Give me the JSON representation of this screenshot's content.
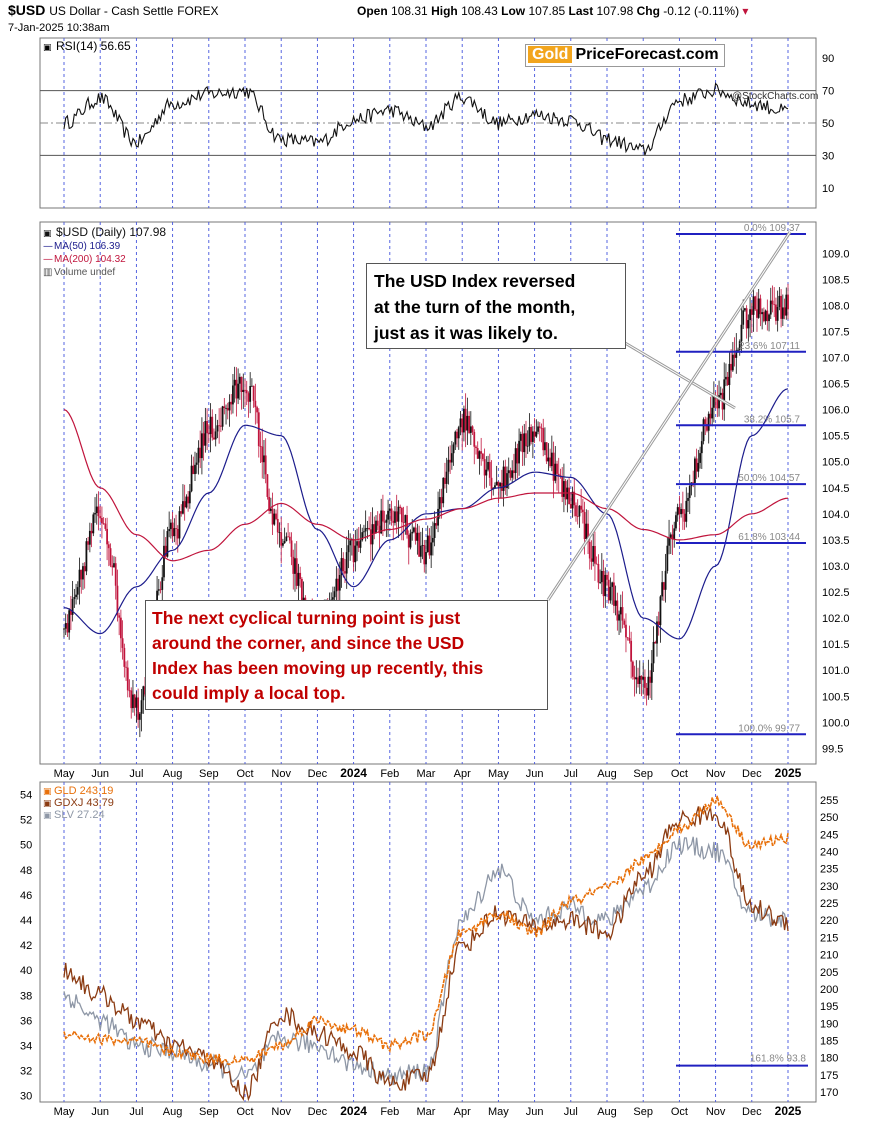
{
  "header": {
    "symbol": "$USD",
    "name": "US Dollar - Cash Settle",
    "exchange": "FOREX",
    "date": "7-Jan-2025 10:38am",
    "open_label": "Open",
    "open": "108.31",
    "high_label": "High",
    "high": "108.43",
    "low_label": "Low",
    "low": "107.85",
    "last_label": "Last",
    "last": "107.98",
    "chg_label": "Chg",
    "chg": "-0.12 (-0.11%)"
  },
  "watermark": {
    "brand": "Gold",
    "brand_rest": "PriceForecast.com",
    "credit": "@StockCharts.com"
  },
  "callouts": {
    "usd_reversal": [
      "The USD Index reversed",
      "at the turn of the month,",
      "just as it was likely to."
    ],
    "turning_point": [
      "The next cyclical turning point is just",
      "around the corner, and since the USD",
      "Index has been moving up recently, this",
      "could imply a local top."
    ]
  },
  "chart_data": [
    {
      "type": "line",
      "title": "RSI(14) 56.65",
      "y_ticks": [
        "90",
        "70",
        "50",
        "30",
        "10"
      ],
      "ylim": [
        0,
        100
      ],
      "reference_lines": [
        70,
        50,
        30
      ],
      "x": [
        "2023-05",
        "2023-06",
        "2023-07",
        "2023-08",
        "2023-09",
        "2023-10",
        "2023-11",
        "2023-12",
        "2024-01",
        "2024-02",
        "2024-03",
        "2024-04",
        "2024-05",
        "2024-06",
        "2024-07",
        "2024-08",
        "2024-09",
        "2024-10",
        "2024-11",
        "2024-12",
        "2025-01"
      ],
      "series": [
        {
          "name": "RSI(14)",
          "values": [
            50,
            65,
            38,
            62,
            68,
            70,
            40,
            38,
            52,
            58,
            48,
            66,
            50,
            55,
            52,
            40,
            33,
            64,
            70,
            62,
            57
          ]
        }
      ],
      "color": "#111111"
    },
    {
      "type": "line",
      "title": "$USD (Daily) 107.98",
      "legend": [
        "$USD (Daily) 107.98",
        "MA(50) 106.39",
        "MA(200) 104.32",
        "Volume undef"
      ],
      "y_ticks": [
        "109.0",
        "108.5",
        "108.0",
        "107.5",
        "107.0",
        "106.5",
        "106.0",
        "105.5",
        "105.0",
        "104.5",
        "104.0",
        "103.5",
        "103.0",
        "102.5",
        "102.0",
        "101.5",
        "101.0",
        "100.5",
        "100.0",
        "99.5"
      ],
      "ylim": [
        99.2,
        109.6
      ],
      "x_labels": [
        "May",
        "Jun",
        "Jul",
        "Aug",
        "Sep",
        "Oct",
        "Nov",
        "Dec",
        "2024",
        "Feb",
        "Mar",
        "Apr",
        "May",
        "Jun",
        "Jul",
        "Aug",
        "Sep",
        "Oct",
        "Nov",
        "Dec",
        "2025"
      ],
      "x": [
        "2023-05",
        "2023-06",
        "2023-07",
        "2023-08",
        "2023-09",
        "2023-10",
        "2023-11",
        "2023-12",
        "2024-01",
        "2024-02",
        "2024-03",
        "2024-04",
        "2024-05",
        "2024-06",
        "2024-07",
        "2024-08",
        "2024-09",
        "2024-10",
        "2024-11",
        "2024-12",
        "2025-01"
      ],
      "series": [
        {
          "name": "$USD (Daily)",
          "color": "#111111",
          "values": [
            101.8,
            104.0,
            100.3,
            103.6,
            105.6,
            106.5,
            103.5,
            101.7,
            103.3,
            104.0,
            103.3,
            105.8,
            104.6,
            105.6,
            104.3,
            102.6,
            100.7,
            104.0,
            106.1,
            107.9,
            108.0
          ]
        },
        {
          "name": "MA(50)",
          "color": "#1c1c8c",
          "values": [
            102.2,
            101.7,
            102.6,
            103.3,
            104.4,
            105.7,
            105.5,
            103.7,
            102.6,
            103.5,
            104.0,
            104.1,
            104.5,
            104.8,
            104.7,
            104.0,
            102.0,
            101.6,
            103.0,
            105.5,
            106.4
          ]
        },
        {
          "name": "MA(200)",
          "color": "#c0143c",
          "values": [
            106.0,
            104.5,
            103.6,
            103.1,
            103.3,
            103.8,
            104.2,
            103.8,
            103.5,
            103.7,
            103.9,
            104.1,
            104.3,
            104.4,
            104.4,
            104.1,
            103.7,
            103.5,
            103.6,
            104.0,
            104.3
          ]
        }
      ],
      "fibonacci": [
        {
          "label": "0.0% 109.37",
          "value": 109.37
        },
        {
          "label": "23.6% 107.11",
          "value": 107.11
        },
        {
          "label": "38.2% 105.7",
          "value": 105.7
        },
        {
          "label": "50.0% 104.57",
          "value": 104.57
        },
        {
          "label": "61.8% 103.44",
          "value": 103.44
        },
        {
          "label": "100.0% 99.77",
          "value": 99.77
        }
      ]
    },
    {
      "type": "line",
      "title": "GLD 243.19 / GDXJ 43.79 / SLV 27.24",
      "legend": [
        "GLD 243.19",
        "GDXJ 43.79",
        "SLV 27.24"
      ],
      "y_ticks_left": [
        "54",
        "52",
        "50",
        "48",
        "46",
        "44",
        "42",
        "40",
        "38",
        "36",
        "34",
        "32",
        "30"
      ],
      "y_ticks_right": [
        "255",
        "250",
        "245",
        "240",
        "235",
        "230",
        "225",
        "220",
        "215",
        "210",
        "205",
        "200",
        "195",
        "190",
        "185",
        "180",
        "175",
        "170"
      ],
      "ylim_left": [
        29.5,
        55
      ],
      "x_labels": [
        "May",
        "Jun",
        "Jul",
        "Aug",
        "Sep",
        "Oct",
        "Nov",
        "Dec",
        "2024",
        "Feb",
        "Mar",
        "Apr",
        "May",
        "Jun",
        "Jul",
        "Aug",
        "Sep",
        "Oct",
        "Nov",
        "Dec",
        "2025"
      ],
      "x": [
        "2023-05",
        "2023-06",
        "2023-07",
        "2023-08",
        "2023-09",
        "2023-10",
        "2023-11",
        "2023-12",
        "2024-01",
        "2024-02",
        "2024-03",
        "2024-04",
        "2024-05",
        "2024-06",
        "2024-07",
        "2024-08",
        "2024-09",
        "2024-10",
        "2024-11",
        "2024-12",
        "2025-01"
      ],
      "series": [
        {
          "name": "GLD",
          "color": "#e8700a",
          "values": [
            35.0,
            34.5,
            34.3,
            33.5,
            33.0,
            32.8,
            34.0,
            36.0,
            35.2,
            34.0,
            34.8,
            43.0,
            44.5,
            43.0,
            45.5,
            46.5,
            48.8,
            51.3,
            53.5,
            50.0,
            50.5
          ]
        },
        {
          "name": "GDXJ",
          "color": "#8b3b12",
          "values": [
            40.0,
            38.0,
            36.0,
            34.0,
            33.0,
            30.3,
            36.5,
            35.0,
            33.5,
            31.0,
            31.5,
            42.0,
            44.5,
            43.5,
            44.0,
            43.0,
            47.5,
            52.0,
            52.5,
            45.0,
            43.8
          ]
        },
        {
          "name": "SLV",
          "color": "#8e97a6",
          "values": [
            38.0,
            36.0,
            34.0,
            33.5,
            32.5,
            31.5,
            34.5,
            34.0,
            32.5,
            31.5,
            32.0,
            44.0,
            48.0,
            44.0,
            45.0,
            44.0,
            46.5,
            50.0,
            49.5,
            44.5,
            44.0
          ]
        }
      ],
      "fibonacci": [
        {
          "label": "161.8% 93.8",
          "value": 32.4
        }
      ]
    }
  ]
}
